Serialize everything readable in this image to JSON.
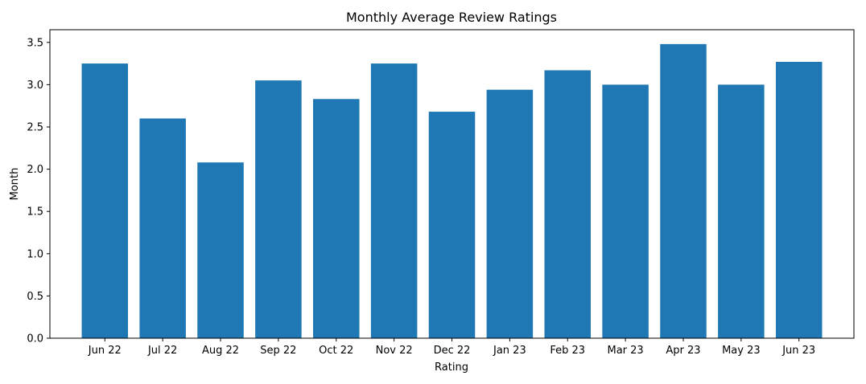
{
  "chart_data": {
    "type": "bar",
    "title": "Monthly Average Review Ratings",
    "xlabel": "Rating",
    "ylabel": "Month",
    "categories": [
      "Jun 22",
      "Jul 22",
      "Aug 22",
      "Sep 22",
      "Oct 22",
      "Nov 22",
      "Dec 22",
      "Jan 23",
      "Feb 23",
      "Mar 23",
      "Apr 23",
      "May 23",
      "Jun 23"
    ],
    "values": [
      3.25,
      2.6,
      2.08,
      3.05,
      2.83,
      3.25,
      2.68,
      2.94,
      3.17,
      3.0,
      3.48,
      3.0,
      3.27
    ],
    "ylim": [
      0,
      3.65
    ],
    "yticks": [
      "0.0",
      "0.5",
      "1.0",
      "1.5",
      "2.0",
      "2.5",
      "3.0",
      "3.5"
    ],
    "grid": false,
    "bar_color": "#1f77b4"
  }
}
